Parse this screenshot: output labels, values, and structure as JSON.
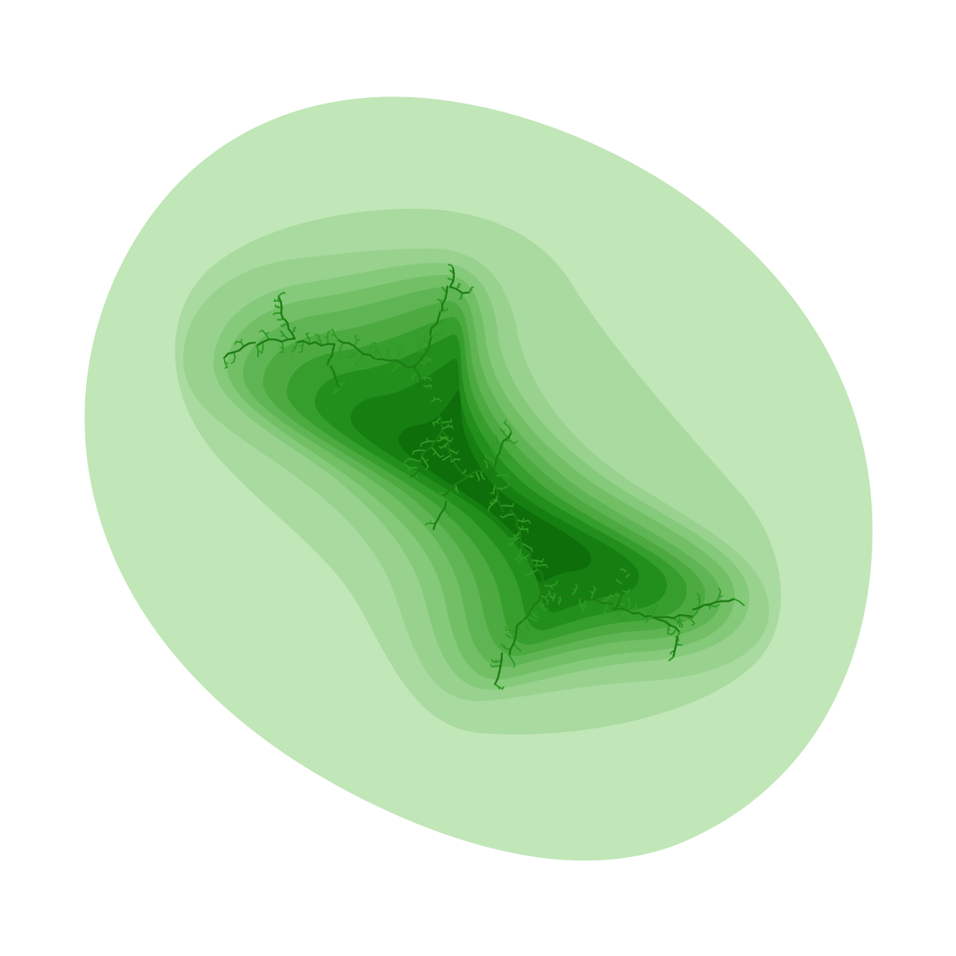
{
  "image": {
    "subject": "fractal-julia-set",
    "background_color": "#ffffff",
    "band_colors": [
      "#c1e6b7",
      "#a9daa0",
      "#98d28e",
      "#85c97a",
      "#72bf66",
      "#5fb553",
      "#4caa41",
      "#369e2d",
      "#228f1c",
      "#167f12",
      "#0d6e0a"
    ],
    "filament_color": "#1d7d14",
    "filament_highlight": "#2f9a24"
  }
}
